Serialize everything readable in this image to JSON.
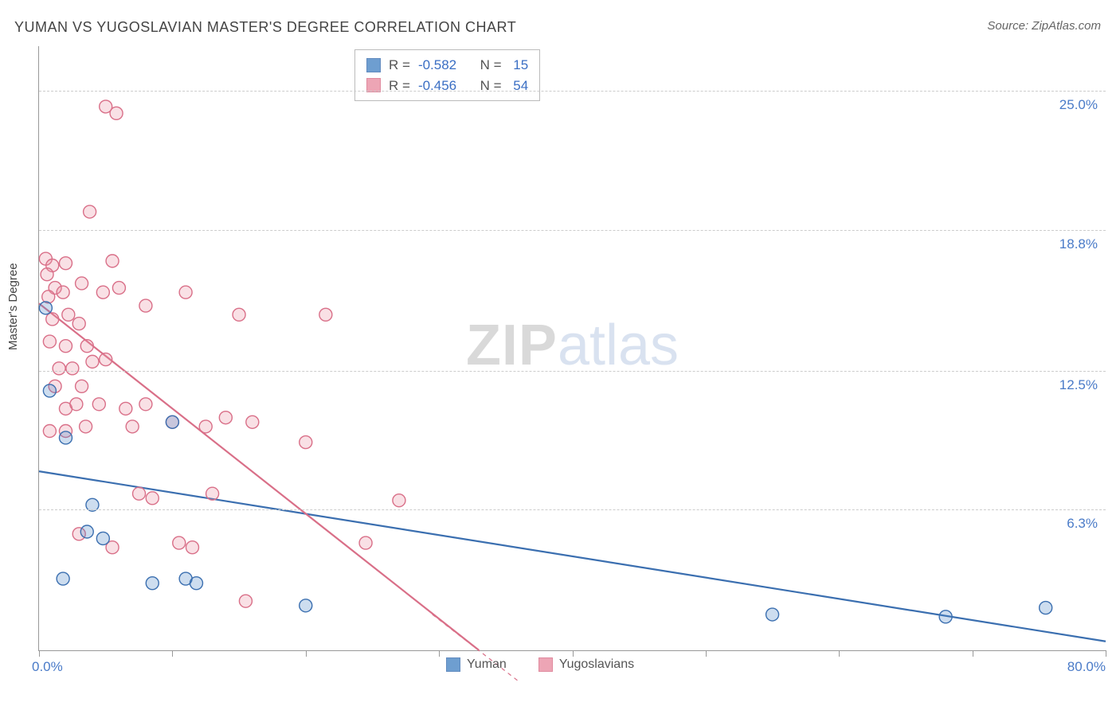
{
  "title": "YUMAN VS YUGOSLAVIAN MASTER'S DEGREE CORRELATION CHART",
  "source_prefix": "Source: ",
  "source_name": "ZipAtlas.com",
  "ylabel": "Master's Degree",
  "watermark_a": "ZIP",
  "watermark_b": "atlas",
  "chart": {
    "type": "scatter",
    "xlim": [
      0,
      80
    ],
    "ylim": [
      0,
      27.0
    ],
    "x_min_label": "0.0%",
    "x_max_label": "80.0%",
    "y_ticks": [
      {
        "v": 6.3,
        "label": "6.3%"
      },
      {
        "v": 12.5,
        "label": "12.5%"
      },
      {
        "v": 18.8,
        "label": "18.8%"
      },
      {
        "v": 25.0,
        "label": "25.0%"
      }
    ],
    "x_tick_positions": [
      0,
      10,
      20,
      30,
      40,
      50,
      60,
      70,
      80
    ],
    "grid_color": "#cccccc",
    "axis_color": "#999999",
    "background_color": "#ffffff",
    "marker_radius": 8,
    "marker_stroke_width": 1.4,
    "marker_fill_opacity": 0.28,
    "line_width": 2.2,
    "series": [
      {
        "name": "Yuman",
        "color": "#4a86c5",
        "stroke": "#3b6fb0",
        "R": "-0.582",
        "N": "15",
        "reg_line": {
          "x1": 0,
          "y1": 8.0,
          "x2": 80,
          "y2": 0.4
        },
        "points": [
          [
            0.5,
            15.3
          ],
          [
            0.8,
            11.6
          ],
          [
            2.0,
            9.5
          ],
          [
            4.0,
            6.5
          ],
          [
            3.6,
            5.3
          ],
          [
            4.8,
            5.0
          ],
          [
            1.8,
            3.2
          ],
          [
            8.5,
            3.0
          ],
          [
            11.0,
            3.2
          ],
          [
            11.8,
            3.0
          ],
          [
            10.0,
            10.2
          ],
          [
            20.0,
            2.0
          ],
          [
            55.0,
            1.6
          ],
          [
            68.0,
            1.5
          ],
          [
            75.5,
            1.9
          ]
        ]
      },
      {
        "name": "Yugoslavians",
        "color": "#e98fa3",
        "stroke": "#d96f88",
        "R": "-0.456",
        "N": "54",
        "reg_line": {
          "x1": 0,
          "y1": 15.5,
          "x2": 33,
          "y2": 0
        },
        "reg_dash_ext": {
          "x1": 29.5,
          "y1": 1.6,
          "x2": 36,
          "y2": -1.4
        },
        "points": [
          [
            5.0,
            24.3
          ],
          [
            5.8,
            24.0
          ],
          [
            3.8,
            19.6
          ],
          [
            0.5,
            17.5
          ],
          [
            1.0,
            17.2
          ],
          [
            0.6,
            16.8
          ],
          [
            2.0,
            17.3
          ],
          [
            5.5,
            17.4
          ],
          [
            1.2,
            16.2
          ],
          [
            1.8,
            16.0
          ],
          [
            0.7,
            15.8
          ],
          [
            3.2,
            16.4
          ],
          [
            4.8,
            16.0
          ],
          [
            6.0,
            16.2
          ],
          [
            11.0,
            16.0
          ],
          [
            1.0,
            14.8
          ],
          [
            2.2,
            15.0
          ],
          [
            3.0,
            14.6
          ],
          [
            8.0,
            15.4
          ],
          [
            0.8,
            13.8
          ],
          [
            2.0,
            13.6
          ],
          [
            3.6,
            13.6
          ],
          [
            1.5,
            12.6
          ],
          [
            2.5,
            12.6
          ],
          [
            4.0,
            12.9
          ],
          [
            5.0,
            13.0
          ],
          [
            1.2,
            11.8
          ],
          [
            3.2,
            11.8
          ],
          [
            2.0,
            10.8
          ],
          [
            2.8,
            11.0
          ],
          [
            4.5,
            11.0
          ],
          [
            6.5,
            10.8
          ],
          [
            8.0,
            11.0
          ],
          [
            0.8,
            9.8
          ],
          [
            2.0,
            9.8
          ],
          [
            3.5,
            10.0
          ],
          [
            7.0,
            10.0
          ],
          [
            10.0,
            10.2
          ],
          [
            12.5,
            10.0
          ],
          [
            14.0,
            10.4
          ],
          [
            16.0,
            10.2
          ],
          [
            21.5,
            15.0
          ],
          [
            15.0,
            15.0
          ],
          [
            20.0,
            9.3
          ],
          [
            7.5,
            7.0
          ],
          [
            8.5,
            6.8
          ],
          [
            13.0,
            7.0
          ],
          [
            3.0,
            5.2
          ],
          [
            5.5,
            4.6
          ],
          [
            10.5,
            4.8
          ],
          [
            11.5,
            4.6
          ],
          [
            15.5,
            2.2
          ],
          [
            24.5,
            4.8
          ],
          [
            27.0,
            6.7
          ]
        ]
      }
    ],
    "legend": {
      "label_a": "Yuman",
      "label_b": "Yugoslavians"
    },
    "stats_labels": {
      "R": "R =",
      "N": "N ="
    }
  },
  "fonts": {
    "title_size": 18,
    "tick_size": 17,
    "legend_size": 16
  }
}
